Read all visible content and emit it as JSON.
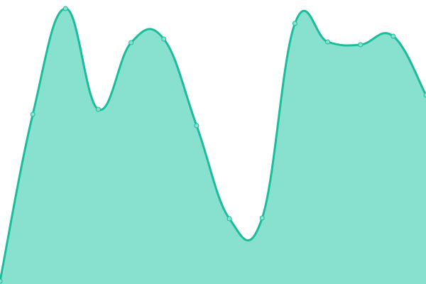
{
  "chart_data": {
    "type": "area",
    "x": [
      1,
      2,
      3,
      4,
      5,
      6,
      7,
      8,
      9,
      10,
      11,
      12,
      13,
      14
    ],
    "values": [
      4,
      239,
      388,
      246,
      340,
      345,
      223,
      92,
      93,
      367,
      341,
      337,
      349,
      266
    ],
    "ylim": [
      0,
      400
    ],
    "grid": false,
    "legend": "none",
    "colors": {
      "line": "#1abc9c",
      "fill": "#88e0cf",
      "point_fill": "#88e0cf"
    }
  }
}
